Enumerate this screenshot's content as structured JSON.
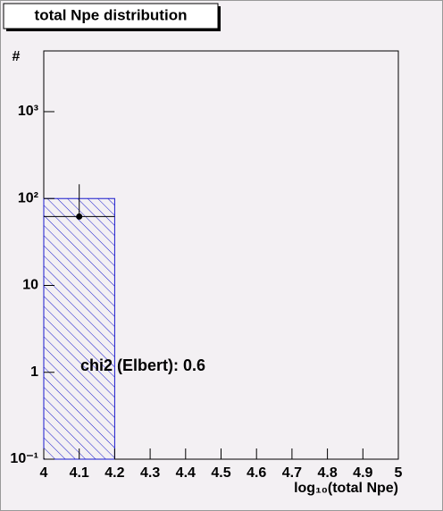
{
  "chart_data": {
    "type": "histogram",
    "title": "total Npe distribution",
    "x_label": "log₁₀(total Npe)",
    "y_label": "#",
    "bins": [
      4.0,
      4.2,
      4.4,
      4.6,
      4.8,
      5.0
    ],
    "series": [
      {
        "color": "#1a1acc",
        "values": [
          100,
          0,
          0,
          0,
          0
        ],
        "hatch": true
      },
      {
        "color": "#000000",
        "values": [
          62,
          0,
          0,
          0,
          0
        ],
        "hatch": false
      }
    ],
    "points": {
      "color": "#000000",
      "x": [
        4.1
      ],
      "values": [
        62
      ],
      "yerr_high": [
        84
      ]
    },
    "annotation": "chi2 (Elbert): 0.6",
    "xlim": [
      4,
      5
    ],
    "xticks": [
      4,
      4.1,
      4.2,
      4.3,
      4.4,
      4.5,
      4.6,
      4.7,
      4.8,
      4.9,
      5
    ],
    "ylim": [
      0.1,
      5000
    ],
    "log_y": true,
    "yticks": [
      {
        "value": 0.1,
        "label": "10⁻¹"
      },
      1,
      10,
      {
        "value": 100,
        "label": "10²"
      },
      {
        "value": 1000,
        "label": "10³"
      }
    ],
    "grid": false
  }
}
